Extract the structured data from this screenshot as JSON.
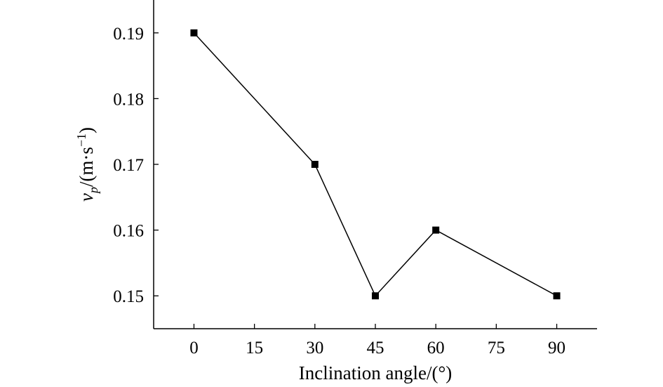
{
  "chart_data": {
    "type": "line",
    "xlabel": "Inclination angle/(°)",
    "ylabel": {
      "symbol": "v",
      "subscript": "p",
      "unit_prefix": "/(m·s",
      "unit_exponent": "−1",
      "unit_suffix": ")"
    },
    "x": [
      0,
      30,
      45,
      60,
      90
    ],
    "values": [
      0.19,
      0.17,
      0.15,
      0.16,
      0.15
    ],
    "xlim": [
      -10,
      100
    ],
    "ylim": [
      0.145,
      0.195
    ],
    "xticks": [
      0,
      15,
      30,
      45,
      60,
      75,
      90
    ],
    "xtick_labels": [
      "0",
      "15",
      "30",
      "45",
      "60",
      "75",
      "90"
    ],
    "yticks": [
      0.15,
      0.16,
      0.17,
      0.18,
      0.19
    ],
    "ytick_labels": [
      "0.15",
      "0.16",
      "0.17",
      "0.18",
      "0.19"
    ],
    "marker": "square",
    "grid": false,
    "line_color": "#000000"
  }
}
